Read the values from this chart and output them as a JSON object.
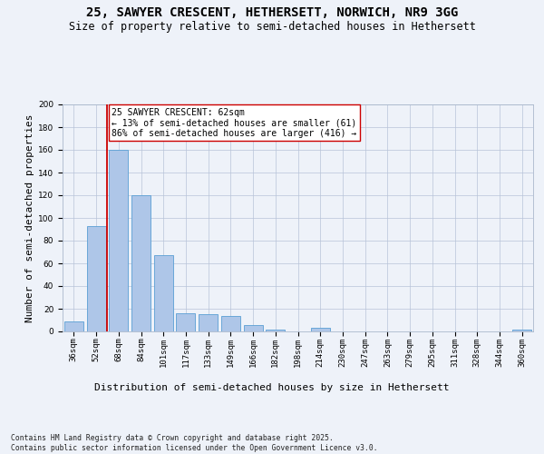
{
  "title_line1": "25, SAWYER CRESCENT, HETHERSETT, NORWICH, NR9 3GG",
  "title_line2": "Size of property relative to semi-detached houses in Hethersett",
  "xlabel": "Distribution of semi-detached houses by size in Hethersett",
  "ylabel": "Number of semi-detached properties",
  "bar_labels": [
    "36sqm",
    "52sqm",
    "68sqm",
    "84sqm",
    "101sqm",
    "117sqm",
    "133sqm",
    "149sqm",
    "166sqm",
    "182sqm",
    "198sqm",
    "214sqm",
    "230sqm",
    "247sqm",
    "263sqm",
    "279sqm",
    "295sqm",
    "311sqm",
    "328sqm",
    "344sqm",
    "360sqm"
  ],
  "bar_values": [
    9,
    93,
    160,
    120,
    67,
    16,
    15,
    14,
    6,
    2,
    0,
    3,
    0,
    0,
    0,
    0,
    0,
    0,
    0,
    0,
    2
  ],
  "bar_color": "#aec6e8",
  "bar_edgecolor": "#5a9fd4",
  "vline_x": 1.5,
  "vline_color": "#cc0000",
  "annotation_text_line1": "25 SAWYER CRESCENT: 62sqm",
  "annotation_text_line2": "← 13% of semi-detached houses are smaller (61)",
  "annotation_text_line3": "86% of semi-detached houses are larger (416) →",
  "annotation_fontsize": 7.0,
  "ylim": [
    0,
    200
  ],
  "yticks": [
    0,
    20,
    40,
    60,
    80,
    100,
    120,
    140,
    160,
    180,
    200
  ],
  "footnote": "Contains HM Land Registry data © Crown copyright and database right 2025.\nContains public sector information licensed under the Open Government Licence v3.0.",
  "bg_color": "#eef2f9",
  "plot_bg_color": "#eef2f9",
  "title_fontsize": 10,
  "subtitle_fontsize": 8.5,
  "axis_label_fontsize": 8,
  "tick_fontsize": 6.5,
  "footnote_fontsize": 5.8
}
